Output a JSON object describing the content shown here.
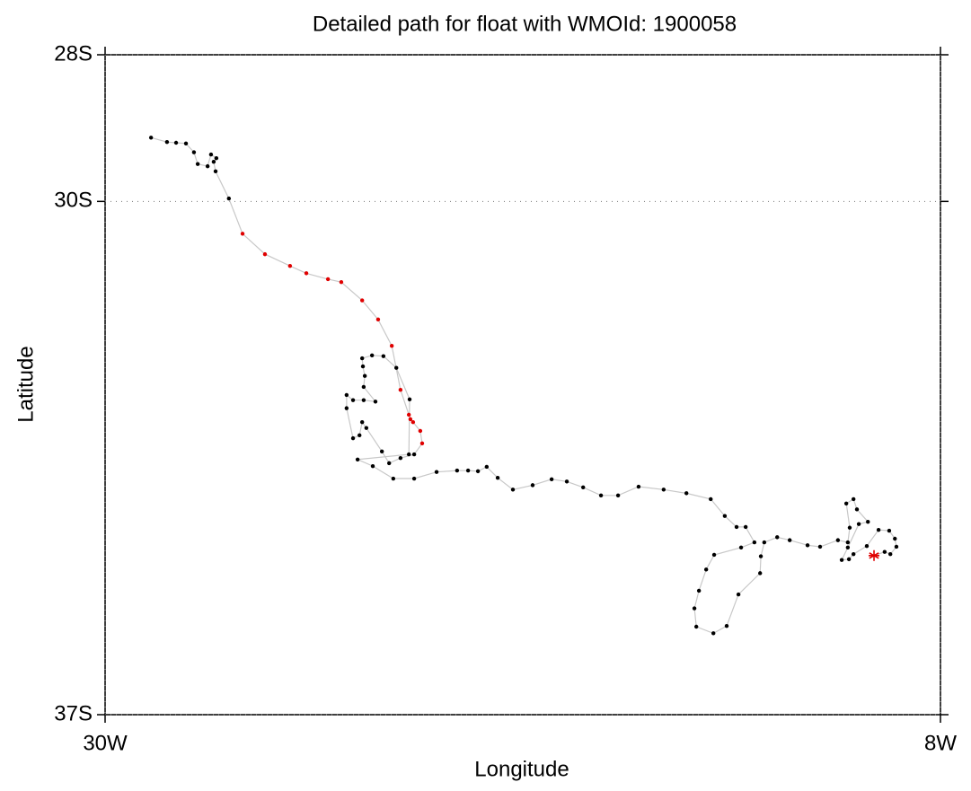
{
  "chart_data": {
    "type": "track",
    "title": "Detailed path for float with WMOId: 1900058",
    "xlabel": "Longitude",
    "ylabel": "Latitude",
    "xlim": [
      -30,
      -8
    ],
    "ylim": [
      -37,
      -28
    ],
    "xticks": [
      {
        "value": -30,
        "label": "30W"
      },
      {
        "value": -8,
        "label": "8W"
      }
    ],
    "yticks": [
      {
        "value": -37,
        "label": "37S"
      },
      {
        "value": -30,
        "label": "30S"
      },
      {
        "value": -28,
        "label": "28S"
      }
    ],
    "grid": true,
    "line_color": "#c8c8c8",
    "last_marker": "asterisk",
    "x": [
      -28.79,
      -28.37,
      -28.13,
      -27.87,
      -27.66,
      -27.56,
      -27.3,
      -27.21,
      -27.07,
      -27.14,
      -27.09,
      -26.74,
      -26.38,
      -25.79,
      -25.13,
      -24.7,
      -24.13,
      -23.78,
      -23.23,
      -22.81,
      -22.45,
      -22.22,
      -22.0,
      -21.96,
      -21.89,
      -21.7,
      -21.65,
      -21.86,
      -22.22,
      -22.52,
      -22.71,
      -23.12,
      -23.23,
      -23.3,
      -23.47,
      -23.64,
      -23.64,
      -23.47,
      -23.19,
      -22.88,
      -23.19,
      -23.16,
      -23.21,
      -23.23,
      -22.97,
      -22.67,
      -22.33,
      -21.98,
      -22.0,
      -23.35,
      -22.95,
      -22.41,
      -21.86,
      -21.27,
      -20.73,
      -20.44,
      -20.18,
      -19.95,
      -19.66,
      -19.26,
      -18.74,
      -18.24,
      -17.84,
      -17.41,
      -16.94,
      -16.49,
      -15.95,
      -15.29,
      -14.69,
      -14.05,
      -13.68,
      -13.37,
      -13.13,
      -12.9,
      -13.25,
      -13.96,
      -14.17,
      -14.36,
      -14.48,
      -14.43,
      -13.98,
      -13.63,
      -13.32,
      -12.75,
      -12.73,
      -12.64,
      -12.3,
      -11.97,
      -11.5,
      -11.17,
      -10.7,
      -10.44,
      -10.39,
      -10.48,
      -10.29,
      -10.2,
      -9.91,
      -10.15,
      -10.44,
      -10.6,
      -10.41,
      -10.29,
      -9.94,
      -9.63,
      -9.35,
      -9.2,
      -9.16,
      -9.32,
      -9.47,
      -9.75
    ],
    "y": [
      -29.13,
      -29.19,
      -29.2,
      -29.21,
      -29.33,
      -29.49,
      -29.52,
      -29.36,
      -29.41,
      -29.46,
      -29.59,
      -29.96,
      -30.44,
      -30.72,
      -30.88,
      -30.98,
      -31.06,
      -31.1,
      -31.35,
      -31.61,
      -31.97,
      -32.57,
      -32.91,
      -32.97,
      -33.01,
      -33.13,
      -33.3,
      -33.45,
      -33.5,
      -33.57,
      -33.41,
      -33.09,
      -33.01,
      -33.19,
      -33.23,
      -32.82,
      -32.64,
      -32.71,
      -32.71,
      -32.73,
      -32.53,
      -32.38,
      -32.25,
      -32.14,
      -32.1,
      -32.11,
      -32.27,
      -32.7,
      -33.45,
      -33.52,
      -33.61,
      -33.78,
      -33.78,
      -33.69,
      -33.67,
      -33.67,
      -33.68,
      -33.62,
      -33.77,
      -33.93,
      -33.87,
      -33.79,
      -33.82,
      -33.9,
      -34.01,
      -34.01,
      -33.89,
      -33.93,
      -33.98,
      -34.06,
      -34.29,
      -34.44,
      -34.44,
      -34.65,
      -34.72,
      -34.82,
      -35.02,
      -35.31,
      -35.55,
      -35.8,
      -35.89,
      -35.79,
      -35.36,
      -35.07,
      -34.84,
      -34.65,
      -34.58,
      -34.62,
      -34.69,
      -34.71,
      -34.62,
      -34.65,
      -34.45,
      -34.12,
      -34.06,
      -34.2,
      -34.37,
      -34.4,
      -34.72,
      -34.89,
      -34.88,
      -34.81,
      -34.7,
      -34.48,
      -34.49,
      -34.6,
      -34.71,
      -34.81,
      -34.78,
      -34.83
    ],
    "colors": [
      "#000000",
      "#000000",
      "#000000",
      "#000000",
      "#000000",
      "#000000",
      "#000000",
      "#000000",
      "#000000",
      "#000000",
      "#000000",
      "#000000",
      "#e00000",
      "#e00000",
      "#e00000",
      "#e00000",
      "#e00000",
      "#e00000",
      "#e00000",
      "#e00000",
      "#e00000",
      "#e00000",
      "#e00000",
      "#e00000",
      "#e00000",
      "#e00000",
      "#e00000",
      "#000000",
      "#000000",
      "#000000",
      "#000000",
      "#000000",
      "#000000",
      "#000000",
      "#000000",
      "#000000",
      "#000000",
      "#000000",
      "#000000",
      "#000000",
      "#000000",
      "#000000",
      "#000000",
      "#000000",
      "#000000",
      "#000000",
      "#000000",
      "#000000",
      "#000000",
      "#000000",
      "#000000",
      "#000000",
      "#000000",
      "#000000",
      "#000000",
      "#000000",
      "#000000",
      "#000000",
      "#000000",
      "#000000",
      "#000000",
      "#000000",
      "#000000",
      "#000000",
      "#000000",
      "#000000",
      "#000000",
      "#000000",
      "#000000",
      "#000000",
      "#000000",
      "#000000",
      "#000000",
      "#000000",
      "#000000",
      "#000000",
      "#000000",
      "#000000",
      "#000000",
      "#000000",
      "#000000",
      "#000000",
      "#000000",
      "#000000",
      "#000000",
      "#000000",
      "#000000",
      "#000000",
      "#000000",
      "#000000",
      "#000000",
      "#000000",
      "#000000",
      "#000000",
      "#000000",
      "#000000",
      "#000000",
      "#000000",
      "#000000",
      "#000000",
      "#000000",
      "#000000",
      "#000000",
      "#000000",
      "#000000",
      "#000000",
      "#000000",
      "#000000",
      "#000000",
      "#e00000"
    ]
  }
}
